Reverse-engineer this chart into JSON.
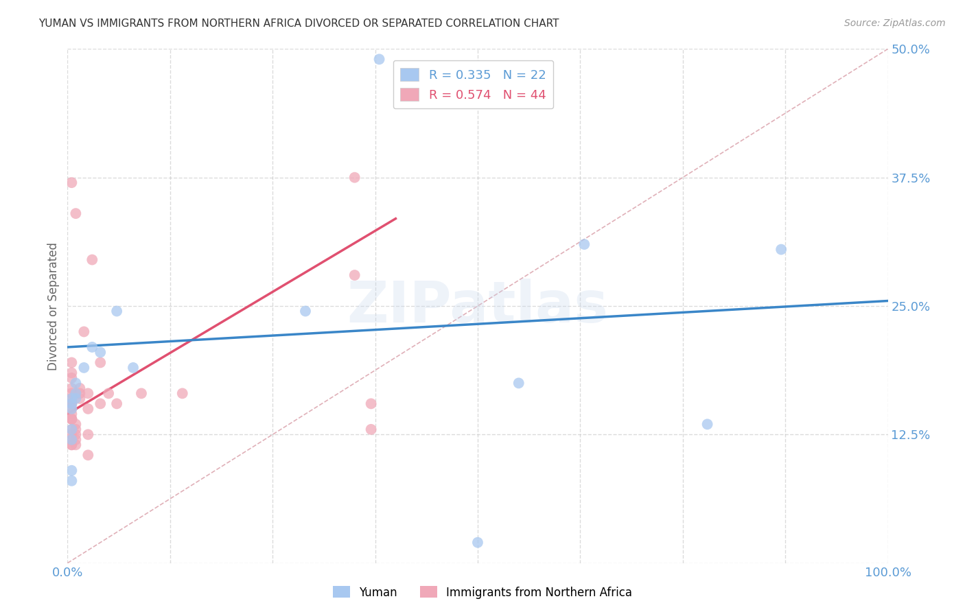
{
  "title": "YUMAN VS IMMIGRANTS FROM NORTHERN AFRICA DIVORCED OR SEPARATED CORRELATION CHART",
  "source": "Source: ZipAtlas.com",
  "ylabel": "Divorced or Separated",
  "xlim": [
    0.0,
    1.0
  ],
  "ylim": [
    0.0,
    0.5
  ],
  "xticks": [
    0.0,
    0.125,
    0.25,
    0.375,
    0.5,
    0.625,
    0.75,
    0.875,
    1.0
  ],
  "xtick_labels": [
    "0.0%",
    "",
    "",
    "",
    "",
    "",
    "",
    "",
    "100.0%"
  ],
  "yticks": [
    0.0,
    0.125,
    0.25,
    0.375,
    0.5
  ],
  "ytick_labels": [
    "",
    "12.5%",
    "25.0%",
    "37.5%",
    "50.0%"
  ],
  "background_color": "#ffffff",
  "watermark_text": "ZIPatlas",
  "legend": [
    {
      "label": "R = 0.335   N = 22",
      "color": "#a8c8f0"
    },
    {
      "label": "R = 0.574   N = 44",
      "color": "#f0a8b8"
    }
  ],
  "yuman_points": [
    [
      0.38,
      0.49
    ],
    [
      0.02,
      0.19
    ],
    [
      0.01,
      0.175
    ],
    [
      0.03,
      0.21
    ],
    [
      0.04,
      0.205
    ],
    [
      0.01,
      0.165
    ],
    [
      0.01,
      0.16
    ],
    [
      0.005,
      0.155
    ],
    [
      0.005,
      0.15
    ],
    [
      0.005,
      0.16
    ],
    [
      0.005,
      0.13
    ],
    [
      0.005,
      0.12
    ],
    [
      0.005,
      0.09
    ],
    [
      0.005,
      0.08
    ],
    [
      0.06,
      0.245
    ],
    [
      0.29,
      0.245
    ],
    [
      0.63,
      0.31
    ],
    [
      0.78,
      0.135
    ],
    [
      0.87,
      0.305
    ],
    [
      0.55,
      0.175
    ],
    [
      0.08,
      0.19
    ],
    [
      0.5,
      0.02
    ]
  ],
  "immigrants_points": [
    [
      0.005,
      0.37
    ],
    [
      0.01,
      0.34
    ],
    [
      0.03,
      0.295
    ],
    [
      0.005,
      0.195
    ],
    [
      0.005,
      0.185
    ],
    [
      0.005,
      0.18
    ],
    [
      0.005,
      0.17
    ],
    [
      0.005,
      0.165
    ],
    [
      0.005,
      0.16
    ],
    [
      0.005,
      0.155
    ],
    [
      0.005,
      0.155
    ],
    [
      0.005,
      0.15
    ],
    [
      0.005,
      0.145
    ],
    [
      0.005,
      0.14
    ],
    [
      0.005,
      0.14
    ],
    [
      0.005,
      0.14
    ],
    [
      0.005,
      0.13
    ],
    [
      0.005,
      0.125
    ],
    [
      0.005,
      0.12
    ],
    [
      0.005,
      0.115
    ],
    [
      0.005,
      0.115
    ],
    [
      0.01,
      0.135
    ],
    [
      0.01,
      0.13
    ],
    [
      0.01,
      0.125
    ],
    [
      0.01,
      0.12
    ],
    [
      0.01,
      0.115
    ],
    [
      0.015,
      0.17
    ],
    [
      0.015,
      0.165
    ],
    [
      0.015,
      0.16
    ],
    [
      0.02,
      0.225
    ],
    [
      0.025,
      0.165
    ],
    [
      0.025,
      0.15
    ],
    [
      0.025,
      0.125
    ],
    [
      0.025,
      0.105
    ],
    [
      0.04,
      0.195
    ],
    [
      0.04,
      0.155
    ],
    [
      0.05,
      0.165
    ],
    [
      0.06,
      0.155
    ],
    [
      0.09,
      0.165
    ],
    [
      0.14,
      0.165
    ],
    [
      0.35,
      0.375
    ],
    [
      0.35,
      0.28
    ],
    [
      0.37,
      0.155
    ],
    [
      0.37,
      0.13
    ]
  ],
  "yuman_line": {
    "x0": 0.0,
    "y0": 0.21,
    "x1": 1.0,
    "y1": 0.255,
    "color": "#3a86c8",
    "lw": 2.5
  },
  "immigrants_line": {
    "x0": 0.0,
    "y0": 0.145,
    "x1": 0.4,
    "y1": 0.335,
    "color": "#e05070",
    "lw": 2.5
  },
  "diagonal_line": {
    "x0": 0.0,
    "y0": 0.0,
    "x1": 1.0,
    "y1": 0.5,
    "color": "#e0b0b8",
    "lw": 1.2,
    "linestyle": "--"
  },
  "dot_color_yuman": "#a8c8f0",
  "dot_color_immigrants": "#f0a8b8",
  "dot_size": 130,
  "dot_alpha": 0.75,
  "title_color": "#333333",
  "axis_label_color": "#666666",
  "tick_color": "#5b9bd5",
  "grid_color": "#cccccc",
  "grid_linestyle": "--",
  "grid_alpha": 0.7,
  "watermark_color": "#c8d8ee",
  "watermark_fontsize": 60,
  "watermark_alpha": 0.3
}
